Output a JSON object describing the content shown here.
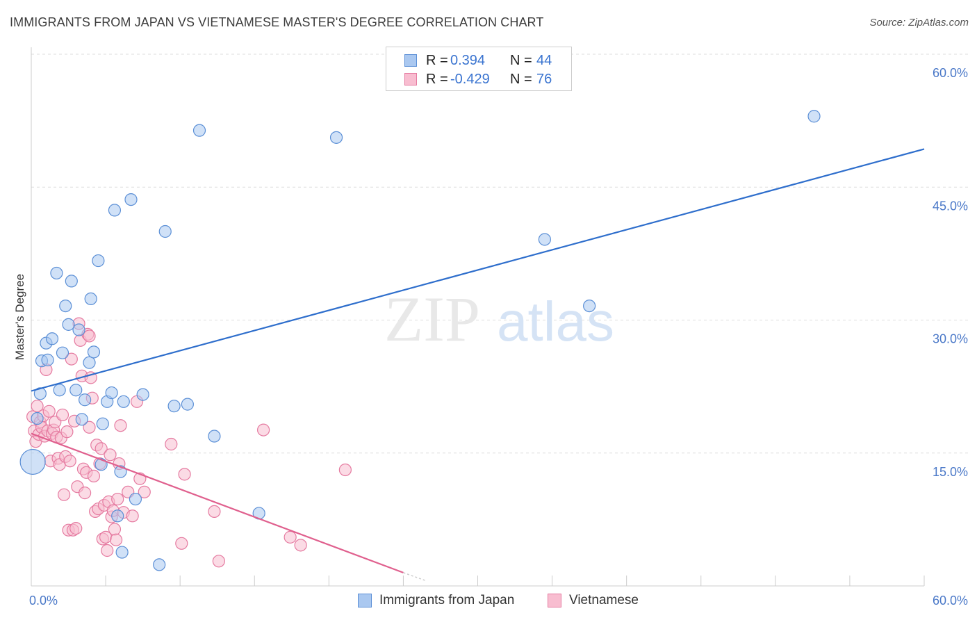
{
  "title": "IMMIGRANTS FROM JAPAN VS VIETNAMESE MASTER'S DEGREE CORRELATION CHART",
  "source": "Source: ZipAtlas.com",
  "watermark": {
    "zip": "ZIP",
    "atlas": "atlas"
  },
  "legend": {
    "rows": [
      {
        "r_label": "R =",
        "r_value": "0.394",
        "n_label": "N =",
        "n_value": "44"
      },
      {
        "r_label": "R =",
        "r_value": "-0.429",
        "n_label": "N =",
        "n_value": "76"
      }
    ]
  },
  "bottom_legend": [
    "Immigrants from Japan",
    "Vietnamese"
  ],
  "colors": {
    "japan_fill": "#aac8f0",
    "japan_stroke": "#5b8fd6",
    "japan_line": "#2e6ecc",
    "viet_fill": "#f8bdd0",
    "viet_stroke": "#e57aa0",
    "viet_line": "#e0608e",
    "axis_text": "#4a78c8",
    "grid": "#dddddd"
  },
  "chart_data": {
    "type": "scatter",
    "title": "IMMIGRANTS FROM JAPAN VS VIETNAMESE MASTER'S DEGREE CORRELATION CHART",
    "xlabel": "",
    "ylabel": "Master's Degree",
    "xlim": [
      0,
      60
    ],
    "ylim": [
      0,
      60
    ],
    "x_tick_labels": [
      "0.0%",
      "60.0%"
    ],
    "y_ticks": [
      15,
      30,
      45,
      60
    ],
    "y_tick_labels": [
      "15.0%",
      "30.0%",
      "45.0%",
      "60.0%"
    ],
    "grid": true,
    "series": [
      {
        "name": "Immigrants from Japan",
        "r": 0.394,
        "n": 44,
        "trend": {
          "x0": 0,
          "y0": 22.0,
          "x1": 60,
          "y1": 49.3
        },
        "points": [
          [
            0.1,
            14.0
          ],
          [
            0.4,
            18.9
          ],
          [
            0.6,
            21.7
          ],
          [
            0.7,
            25.4
          ],
          [
            1.0,
            27.4
          ],
          [
            1.1,
            25.5
          ],
          [
            1.4,
            27.9
          ],
          [
            1.7,
            35.3
          ],
          [
            1.9,
            22.1
          ],
          [
            2.1,
            26.3
          ],
          [
            2.3,
            31.6
          ],
          [
            2.5,
            29.5
          ],
          [
            2.7,
            34.4
          ],
          [
            3.2,
            28.9
          ],
          [
            3.4,
            18.8
          ],
          [
            3.6,
            21.0
          ],
          [
            3.9,
            25.2
          ],
          [
            4.0,
            32.4
          ],
          [
            4.2,
            26.4
          ],
          [
            4.5,
            36.7
          ],
          [
            4.7,
            13.7
          ],
          [
            4.8,
            18.3
          ],
          [
            5.1,
            20.8
          ],
          [
            5.4,
            21.8
          ],
          [
            5.6,
            42.4
          ],
          [
            5.8,
            7.9
          ],
          [
            6.0,
            12.9
          ],
          [
            6.2,
            20.8
          ],
          [
            6.7,
            43.6
          ],
          [
            7.0,
            9.8
          ],
          [
            7.5,
            21.6
          ],
          [
            9.0,
            40.0
          ],
          [
            9.6,
            20.3
          ],
          [
            10.5,
            20.5
          ],
          [
            11.3,
            51.4
          ],
          [
            12.3,
            16.9
          ],
          [
            3.0,
            22.1
          ],
          [
            6.1,
            3.8
          ],
          [
            8.6,
            2.4
          ],
          [
            15.3,
            8.2
          ],
          [
            20.5,
            50.6
          ],
          [
            34.5,
            39.1
          ],
          [
            37.5,
            31.6
          ],
          [
            52.6,
            53.0
          ]
        ]
      },
      {
        "name": "Vietnamese",
        "r": -0.429,
        "n": 76,
        "trend": {
          "x0": 0,
          "y0": 17.2,
          "x1": 25.0,
          "y1": 1.5
        },
        "points": [
          [
            0.1,
            19.1
          ],
          [
            0.2,
            17.5
          ],
          [
            0.3,
            16.3
          ],
          [
            0.4,
            20.3
          ],
          [
            0.5,
            17.1
          ],
          [
            0.6,
            18.5
          ],
          [
            0.7,
            17.9
          ],
          [
            0.8,
            19.2
          ],
          [
            0.9,
            16.9
          ],
          [
            1.0,
            24.4
          ],
          [
            1.1,
            17.5
          ],
          [
            1.2,
            19.7
          ],
          [
            1.3,
            14.1
          ],
          [
            1.4,
            17.2
          ],
          [
            1.5,
            17.6
          ],
          [
            1.6,
            18.5
          ],
          [
            1.7,
            16.8
          ],
          [
            1.8,
            14.4
          ],
          [
            1.9,
            13.7
          ],
          [
            2.0,
            16.7
          ],
          [
            2.1,
            19.3
          ],
          [
            2.2,
            10.3
          ],
          [
            2.3,
            14.6
          ],
          [
            2.4,
            17.4
          ],
          [
            2.5,
            6.3
          ],
          [
            2.6,
            14.1
          ],
          [
            2.7,
            25.6
          ],
          [
            2.8,
            6.3
          ],
          [
            2.9,
            18.6
          ],
          [
            3.0,
            6.5
          ],
          [
            3.1,
            11.2
          ],
          [
            3.2,
            29.6
          ],
          [
            3.3,
            27.7
          ],
          [
            3.4,
            23.7
          ],
          [
            3.5,
            13.2
          ],
          [
            3.6,
            10.5
          ],
          [
            3.7,
            12.8
          ],
          [
            3.8,
            28.4
          ],
          [
            3.9,
            17.9
          ],
          [
            4.0,
            23.5
          ],
          [
            4.1,
            21.2
          ],
          [
            4.2,
            12.4
          ],
          [
            4.3,
            8.4
          ],
          [
            4.4,
            15.9
          ],
          [
            4.5,
            8.7
          ],
          [
            4.6,
            13.8
          ],
          [
            4.7,
            15.5
          ],
          [
            4.8,
            5.3
          ],
          [
            4.9,
            9.1
          ],
          [
            5.0,
            5.5
          ],
          [
            5.1,
            4.0
          ],
          [
            5.2,
            9.5
          ],
          [
            5.3,
            14.8
          ],
          [
            5.4,
            7.8
          ],
          [
            5.5,
            8.5
          ],
          [
            5.6,
            6.4
          ],
          [
            5.7,
            5.2
          ],
          [
            5.8,
            9.8
          ],
          [
            5.9,
            13.8
          ],
          [
            6.0,
            18.1
          ],
          [
            6.2,
            8.3
          ],
          [
            6.5,
            10.6
          ],
          [
            6.8,
            7.9
          ],
          [
            7.1,
            20.8
          ],
          [
            7.3,
            12.1
          ],
          [
            7.6,
            10.6
          ],
          [
            9.4,
            16.0
          ],
          [
            10.1,
            4.8
          ],
          [
            10.3,
            12.6
          ],
          [
            12.3,
            8.4
          ],
          [
            12.6,
            2.8
          ],
          [
            15.6,
            17.6
          ],
          [
            17.4,
            5.5
          ],
          [
            18.1,
            4.6
          ],
          [
            21.1,
            13.1
          ],
          [
            3.9,
            28.2
          ]
        ]
      }
    ]
  }
}
